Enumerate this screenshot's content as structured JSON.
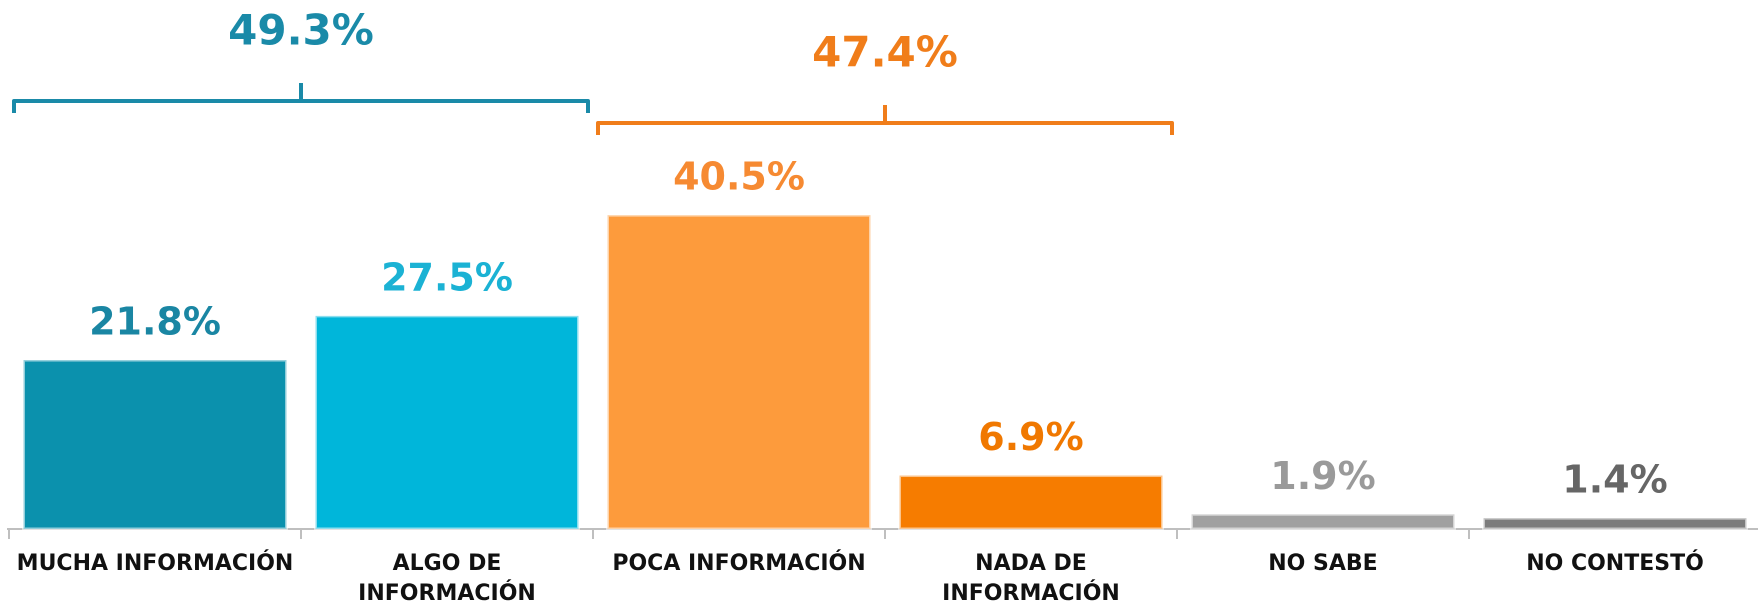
{
  "chart_data": {
    "type": "bar",
    "categories": [
      "MUCHA INFORMACIÓN",
      "ALGO DE INFORMACIÓN",
      "POCA INFORMACIÓN",
      "NADA DE INFORMACIÓN",
      "NO SABE",
      "NO CONTESTÓ"
    ],
    "values": [
      21.8,
      27.5,
      40.5,
      6.9,
      1.9,
      1.4
    ],
    "value_labels": [
      "21.8%",
      "27.5%",
      "40.5%",
      "6.9%",
      "1.9%",
      "1.4%"
    ],
    "colors": [
      "#0b91ad",
      "#00b6da",
      "#fd9b3c",
      "#f67c00",
      "#a0a0a0",
      "#7c7c7c"
    ],
    "label_colors": [
      "#1a86a3",
      "#1bb2d4",
      "#f68a32",
      "#f07800",
      "#9a9a9a",
      "#666666"
    ],
    "groups": [
      {
        "value": 49.3,
        "label": "49.3%",
        "color": "#1a8aa8"
      },
      {
        "value": 47.4,
        "label": "47.4%",
        "color": "#f07d1a"
      }
    ]
  }
}
